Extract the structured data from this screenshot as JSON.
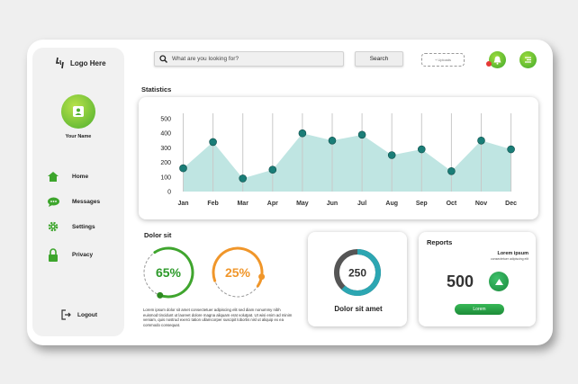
{
  "sidebar": {
    "logo": "Logo Here",
    "username": "Your Name",
    "nav": [
      {
        "label": "Home",
        "icon": "home-icon"
      },
      {
        "label": "Messages",
        "icon": "messages-icon"
      },
      {
        "label": "Settings",
        "icon": "settings-icon"
      },
      {
        "label": "Privacy",
        "icon": "lock-icon"
      }
    ],
    "logout": "Logout"
  },
  "header": {
    "search_placeholder": "What are you looking for?",
    "search_button": "Search",
    "upload": "+ Uploads"
  },
  "statistics": {
    "title": "Statistics",
    "chart_data": {
      "type": "area",
      "categories": [
        "Jan",
        "Feb",
        "Mar",
        "Apr",
        "May",
        "Jun",
        "Jul",
        "Aug",
        "Sep",
        "Oct",
        "Nov",
        "Dec"
      ],
      "values": [
        160,
        340,
        90,
        150,
        400,
        350,
        390,
        250,
        290,
        140,
        350,
        290
      ],
      "ylim": [
        0,
        500
      ],
      "yticks": [
        "500",
        "400",
        "300",
        "200",
        "100",
        "0"
      ],
      "fill_color": "#bfe5e2",
      "point_color": "#1a7d77",
      "grid": "vertical"
    }
  },
  "dolor": {
    "title": "Dolor sit",
    "gauge1": {
      "label": "65%",
      "value": 65,
      "color": "#3fa52e"
    },
    "gauge2": {
      "label": "25%",
      "value": 25,
      "color": "#f0962a"
    },
    "lorem": "Lorem ipsum dolor sit amet consectetuer adipiscing elit sed diam nonummy nibh euismod tincidunt ut laoreet dolore magna aliquam erat volutpat. Ut wisi enim ad minim veniam, quis nostrud exerci tation ullamcorper suscipit lobortis nisl ut aliquip ex ea commodo consequat."
  },
  "donut": {
    "value": "250",
    "label": "Dolor sit amet",
    "fraction": 0.62
  },
  "reports": {
    "title": "Reports",
    "sub1": "Lorem ipsum",
    "sub2": "consectetuer adipiscing elit",
    "value": "500",
    "button": "Lorem"
  }
}
